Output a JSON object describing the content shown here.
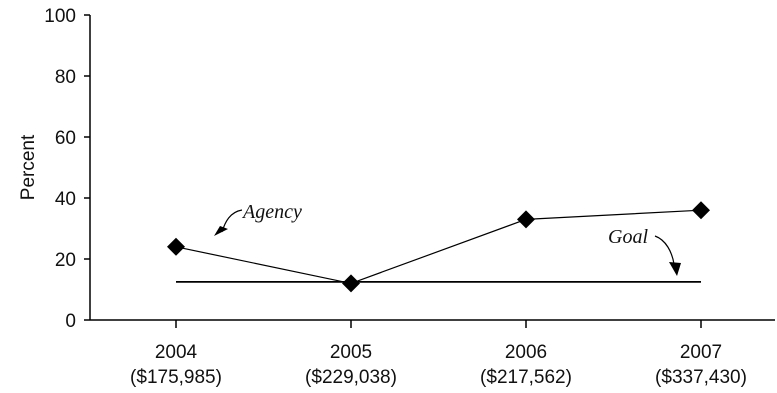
{
  "chart_data": {
    "type": "line",
    "ylabel": "Percent",
    "ylim": [
      0,
      100
    ],
    "yticks": [
      0,
      20,
      40,
      60,
      80,
      100
    ],
    "categories": [
      {
        "year": "2004",
        "amount": "($175,985)"
      },
      {
        "year": "2005",
        "amount": "($229,038)"
      },
      {
        "year": "2006",
        "amount": "($217,562)"
      },
      {
        "year": "2007",
        "amount": "($337,430)"
      }
    ],
    "series": [
      {
        "name": "Agency",
        "values": [
          24,
          12,
          33,
          36
        ],
        "marker": "diamond",
        "color": "#000000"
      },
      {
        "name": "Goal",
        "values": [
          12.5,
          12.5,
          12.5,
          12.5
        ],
        "marker": "none",
        "color": "#000000"
      }
    ],
    "annotations": [
      {
        "text": "Agency",
        "series": "Agency"
      },
      {
        "text": "Goal",
        "series": "Goal"
      }
    ],
    "grid": false
  }
}
